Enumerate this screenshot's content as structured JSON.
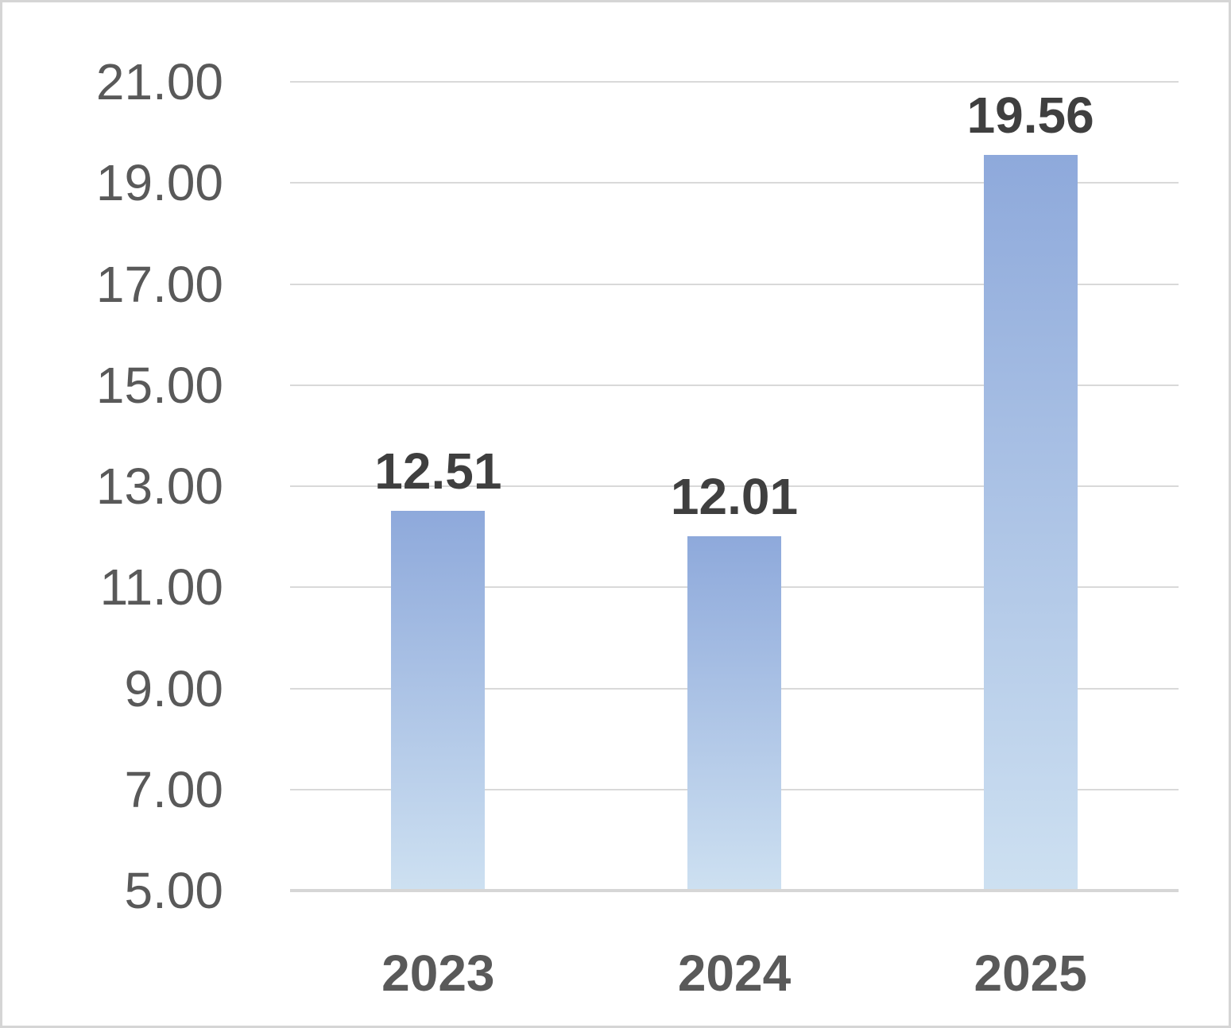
{
  "chart_data": {
    "type": "bar",
    "title": "",
    "xlabel": "",
    "ylabel": "",
    "categories": [
      "2023",
      "2024",
      "2025"
    ],
    "values": [
      12.51,
      12.01,
      19.56
    ],
    "data_labels": [
      "12.51",
      "12.01",
      "19.56"
    ],
    "yticks": [
      21,
      19,
      17,
      15,
      13,
      11,
      9,
      7,
      5
    ],
    "ytick_labels": [
      "21.00",
      "19.00",
      "17.00",
      "15.00",
      "13.00",
      "11.00",
      "9.00",
      "7.00",
      "5.00"
    ],
    "ylim": [
      5,
      21
    ],
    "grid": true,
    "legend": false,
    "colors": {
      "bar_gradient_top": "#8EA9DB",
      "bar_gradient_bottom": "#CDE0F1",
      "gridline": "#D9D9D9",
      "axis_line": "#D6D6D6",
      "tick_label": "#595959",
      "category_label": "#595959",
      "data_label": "#3F3F3F",
      "background": "#FFFFFF",
      "border": "#D5D5D5"
    }
  }
}
